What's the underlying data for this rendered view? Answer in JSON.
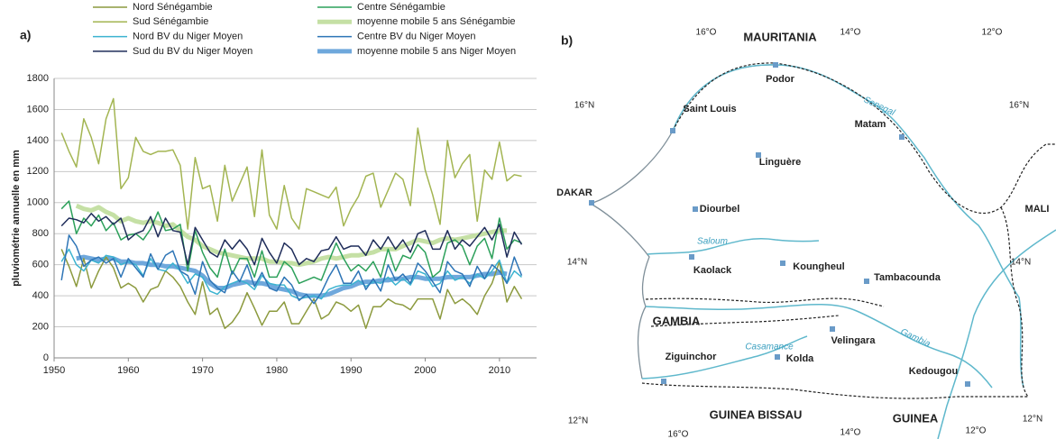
{
  "chart_data": {
    "type": "line",
    "panel_label": "a)",
    "ylabel": "pluviométrie annuelle en mm",
    "x": [
      1951,
      1952,
      1953,
      1954,
      1955,
      1956,
      1957,
      1958,
      1959,
      1960,
      1961,
      1962,
      1963,
      1964,
      1965,
      1966,
      1967,
      1968,
      1969,
      1970,
      1971,
      1972,
      1973,
      1974,
      1975,
      1976,
      1977,
      1978,
      1979,
      1980,
      1981,
      1982,
      1983,
      1984,
      1985,
      1986,
      1987,
      1988,
      1989,
      1990,
      1991,
      1992,
      1993,
      1994,
      1995,
      1996,
      1997,
      1998,
      1999,
      2000,
      2001,
      2002,
      2003,
      2004,
      2005,
      2006,
      2007,
      2008,
      2009,
      2010,
      2011,
      2012,
      2013
    ],
    "xlim": [
      1950,
      2015
    ],
    "xticks": [
      1950,
      1960,
      1970,
      1980,
      1990,
      2000,
      2010
    ],
    "ylim": [
      0,
      1800
    ],
    "yticks": [
      0,
      200,
      400,
      600,
      800,
      1000,
      1200,
      1400,
      1600,
      1800
    ],
    "grid": true,
    "series": [
      {
        "name": "Nord Sénégambie",
        "color": "#8c9a3e",
        "line_width": 1.5,
        "values": [
          700,
          590,
          460,
          640,
          450,
          560,
          650,
          580,
          450,
          480,
          450,
          360,
          440,
          460,
          560,
          520,
          460,
          360,
          280,
          490,
          280,
          320,
          190,
          230,
          300,
          420,
          320,
          210,
          300,
          300,
          360,
          220,
          220,
          300,
          380,
          250,
          280,
          360,
          340,
          300,
          340,
          190,
          330,
          330,
          380,
          350,
          340,
          310,
          380,
          380,
          380,
          250,
          440,
          350,
          380,
          340,
          280,
          400,
          480,
          620,
          360,
          460,
          380
        ]
      },
      {
        "name": "Centre Sénégambie",
        "color": "#2ca05a",
        "line_width": 1.5,
        "values": [
          960,
          1010,
          800,
          900,
          850,
          920,
          820,
          870,
          760,
          790,
          800,
          760,
          830,
          940,
          820,
          830,
          860,
          560,
          820,
          680,
          580,
          520,
          700,
          540,
          640,
          640,
          520,
          690,
          520,
          520,
          620,
          580,
          480,
          500,
          520,
          500,
          620,
          740,
          640,
          560,
          600,
          560,
          620,
          520,
          700,
          560,
          660,
          640,
          730,
          680,
          520,
          560,
          740,
          760,
          720,
          600,
          720,
          770,
          640,
          900,
          700,
          760,
          740
        ]
      },
      {
        "name": "Sud Sénégambie",
        "color": "#a3b552",
        "line_width": 1.5,
        "values": [
          1450,
          1330,
          1230,
          1540,
          1420,
          1250,
          1540,
          1670,
          1090,
          1160,
          1420,
          1330,
          1310,
          1330,
          1330,
          1340,
          1240,
          830,
          1290,
          1090,
          1110,
          880,
          1240,
          1010,
          1120,
          1230,
          910,
          1340,
          920,
          830,
          1110,
          900,
          830,
          1090,
          1070,
          1050,
          1030,
          1100,
          850,
          960,
          1040,
          1170,
          1190,
          970,
          1080,
          1190,
          1150,
          980,
          1480,
          1210,
          1050,
          860,
          1400,
          1160,
          1250,
          1310,
          880,
          1210,
          1150,
          1390,
          1140,
          1180,
          1170
        ]
      },
      {
        "name": "moyenne mobile 5 ans Sénégambie",
        "color": "#c5e0a5",
        "line_width": 5,
        "values": [
          null,
          null,
          980,
          960,
          950,
          970,
          940,
          920,
          880,
          900,
          880,
          870,
          880,
          870,
          850,
          860,
          820,
          780,
          760,
          720,
          700,
          680,
          670,
          660,
          650,
          640,
          640,
          640,
          620,
          620,
          610,
          610,
          600,
          610,
          620,
          640,
          650,
          640,
          650,
          660,
          660,
          670,
          680,
          700,
          700,
          700,
          720,
          740,
          760,
          750,
          740,
          760,
          770,
          760,
          770,
          780,
          790,
          800,
          810,
          820,
          820,
          null,
          null
        ]
      },
      {
        "name": "Nord BV du Niger Moyen",
        "color": "#3bb3d0",
        "line_width": 1.5,
        "values": [
          620,
          700,
          600,
          560,
          630,
          610,
          660,
          650,
          600,
          620,
          600,
          530,
          640,
          570,
          560,
          610,
          560,
          480,
          540,
          520,
          430,
          410,
          460,
          480,
          500,
          480,
          440,
          530,
          480,
          470,
          470,
          400,
          380,
          390,
          400,
          380,
          440,
          460,
          470,
          470,
          500,
          460,
          490,
          480,
          520,
          470,
          510,
          470,
          560,
          540,
          460,
          480,
          560,
          500,
          520,
          480,
          540,
          510,
          560,
          630,
          480,
          560,
          520
        ]
      },
      {
        "name": "Centre BV du Niger Moyen",
        "color": "#2e75b6",
        "line_width": 1.5,
        "values": [
          500,
          790,
          720,
          590,
          630,
          650,
          610,
          640,
          520,
          640,
          580,
          520,
          670,
          570,
          660,
          690,
          560,
          530,
          410,
          620,
          500,
          450,
          420,
          560,
          490,
          600,
          460,
          550,
          450,
          430,
          520,
          470,
          370,
          410,
          350,
          420,
          520,
          600,
          480,
          480,
          560,
          440,
          510,
          430,
          600,
          500,
          540,
          480,
          610,
          560,
          490,
          420,
          620,
          560,
          540,
          460,
          590,
          510,
          600,
          560,
          480,
          650,
          530
        ]
      },
      {
        "name": "Sud du BV du Niger Moyen",
        "color": "#1f2d5a",
        "line_width": 1.5,
        "values": [
          850,
          900,
          890,
          870,
          930,
          880,
          910,
          860,
          900,
          760,
          800,
          820,
          910,
          780,
          900,
          820,
          810,
          600,
          840,
          760,
          680,
          650,
          760,
          700,
          760,
          700,
          600,
          770,
          680,
          610,
          740,
          700,
          600,
          640,
          620,
          690,
          700,
          780,
          700,
          720,
          720,
          660,
          760,
          700,
          780,
          700,
          760,
          680,
          800,
          820,
          700,
          700,
          820,
          700,
          760,
          720,
          780,
          840,
          760,
          860,
          650,
          810,
          730
        ]
      },
      {
        "name": "moyenne mobile 5 ans Niger Moyen",
        "color": "#6fa8dc",
        "line_width": 5,
        "values": [
          null,
          null,
          640,
          650,
          640,
          630,
          640,
          640,
          620,
          620,
          610,
          610,
          600,
          600,
          590,
          590,
          580,
          570,
          560,
          530,
          480,
          450,
          450,
          470,
          480,
          490,
          480,
          480,
          470,
          450,
          440,
          430,
          410,
          400,
          400,
          400,
          410,
          430,
          450,
          460,
          480,
          490,
          490,
          500,
          500,
          510,
          510,
          520,
          520,
          510,
          510,
          510,
          520,
          520,
          520,
          520,
          530,
          540,
          540,
          550,
          540,
          null,
          null
        ]
      }
    ]
  },
  "map": {
    "panel_label": "b)",
    "labels": [
      "16°O",
      "MAURITANIA",
      "14°O",
      "12°O",
      "Podor",
      "Senegal",
      "16°N",
      "Saint Louis",
      "Matam",
      "16°N",
      "Linguère",
      "DAKAR",
      "Diourbel",
      "MALI",
      "Saloum",
      "14°N",
      "Kaolack",
      "Koungheul",
      "Tambacounda",
      "14°N",
      "GAMBIA",
      "Velingara",
      "Gambia",
      "Casamance",
      "Ziguinchor",
      "Kolda",
      "Kedougou",
      "12°N",
      "GUINEA BISSAU",
      "GUINEA",
      "12°N",
      "16°O",
      "14°O",
      "12°O"
    ]
  }
}
